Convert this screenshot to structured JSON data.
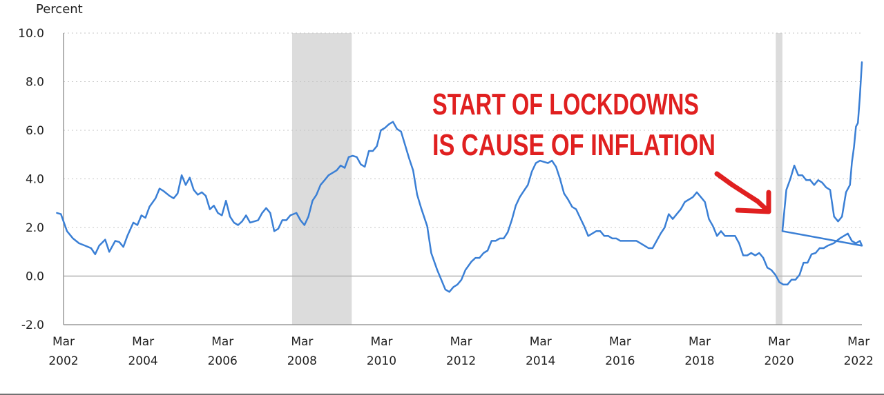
{
  "chart_data": {
    "type": "line",
    "title": "",
    "ylabel": "Percent",
    "xlabel": "",
    "ylim": [
      -2.0,
      10.0
    ],
    "yticks": [
      "-2.0",
      "0.0",
      "2.0",
      "4.0",
      "6.0",
      "8.0",
      "10.0"
    ],
    "ytick_values": [
      -2,
      0,
      2,
      4,
      6,
      8,
      10
    ],
    "xlim": [
      2002.167,
      2022.25
    ],
    "xticks": [
      {
        "value": 2002.167,
        "month": "Mar",
        "year": "2002"
      },
      {
        "value": 2004.167,
        "month": "Mar",
        "year": "2004"
      },
      {
        "value": 2006.167,
        "month": "Mar",
        "year": "2006"
      },
      {
        "value": 2008.167,
        "month": "Mar",
        "year": "2008"
      },
      {
        "value": 2010.167,
        "month": "Mar",
        "year": "2010"
      },
      {
        "value": 2012.167,
        "month": "Mar",
        "year": "2012"
      },
      {
        "value": 2014.167,
        "month": "Mar",
        "year": "2014"
      },
      {
        "value": 2016.167,
        "month": "Mar",
        "year": "2016"
      },
      {
        "value": 2018.167,
        "month": "Mar",
        "year": "2018"
      },
      {
        "value": 2020.167,
        "month": "Mar",
        "year": "2020"
      },
      {
        "value": 2022.167,
        "month": "Mar",
        "year": "2022"
      }
    ],
    "recessions": [
      [
        2007.917,
        2009.417
      ],
      [
        2020.083,
        2020.25
      ]
    ],
    "series": [
      {
        "name": "Percent",
        "color": "#3a7fd5",
        "points": [
          [
            2002.0,
            2.6
          ],
          [
            2002.1,
            2.55
          ],
          [
            2002.25,
            1.85
          ],
          [
            2002.4,
            1.55
          ],
          [
            2002.55,
            1.35
          ],
          [
            2002.7,
            1.25
          ],
          [
            2002.85,
            1.15
          ],
          [
            2002.95,
            0.9
          ],
          [
            2003.05,
            1.25
          ],
          [
            2003.2,
            1.5
          ],
          [
            2003.3,
            1.0
          ],
          [
            2003.45,
            1.45
          ],
          [
            2003.55,
            1.4
          ],
          [
            2003.65,
            1.2
          ],
          [
            2003.75,
            1.65
          ],
          [
            2003.9,
            2.2
          ],
          [
            2004.0,
            2.1
          ],
          [
            2004.1,
            2.5
          ],
          [
            2004.2,
            2.4
          ],
          [
            2004.3,
            2.85
          ],
          [
            2004.45,
            3.2
          ],
          [
            2004.55,
            3.6
          ],
          [
            2004.65,
            3.5
          ],
          [
            2004.8,
            3.3
          ],
          [
            2004.9,
            3.2
          ],
          [
            2005.0,
            3.4
          ],
          [
            2005.1,
            4.15
          ],
          [
            2005.2,
            3.75
          ],
          [
            2005.3,
            4.05
          ],
          [
            2005.4,
            3.55
          ],
          [
            2005.5,
            3.35
          ],
          [
            2005.6,
            3.45
          ],
          [
            2005.7,
            3.3
          ],
          [
            2005.8,
            2.75
          ],
          [
            2005.9,
            2.9
          ],
          [
            2006.0,
            2.6
          ],
          [
            2006.1,
            2.5
          ],
          [
            2006.2,
            3.1
          ],
          [
            2006.3,
            2.45
          ],
          [
            2006.4,
            2.2
          ],
          [
            2006.5,
            2.1
          ],
          [
            2006.6,
            2.25
          ],
          [
            2006.7,
            2.5
          ],
          [
            2006.8,
            2.2
          ],
          [
            2006.9,
            2.25
          ],
          [
            2007.0,
            2.3
          ],
          [
            2007.1,
            2.6
          ],
          [
            2007.2,
            2.8
          ],
          [
            2007.3,
            2.6
          ],
          [
            2007.4,
            1.85
          ],
          [
            2007.5,
            1.95
          ],
          [
            2007.6,
            2.3
          ],
          [
            2007.7,
            2.3
          ],
          [
            2007.8,
            2.5
          ],
          [
            2007.95,
            2.6
          ],
          [
            2008.05,
            2.3
          ],
          [
            2008.15,
            2.1
          ],
          [
            2008.25,
            2.45
          ],
          [
            2008.35,
            3.1
          ],
          [
            2008.45,
            3.35
          ],
          [
            2008.55,
            3.75
          ],
          [
            2008.65,
            3.95
          ],
          [
            2008.75,
            4.15
          ],
          [
            2008.85,
            4.25
          ],
          [
            2008.95,
            4.35
          ],
          [
            2009.05,
            4.55
          ],
          [
            2009.15,
            4.45
          ],
          [
            2009.25,
            4.9
          ],
          [
            2009.35,
            4.95
          ],
          [
            2009.45,
            4.9
          ],
          [
            2009.55,
            4.6
          ],
          [
            2009.65,
            4.5
          ],
          [
            2009.75,
            5.15
          ],
          [
            2009.85,
            5.15
          ],
          [
            2009.95,
            5.35
          ],
          [
            2010.05,
            6.0
          ],
          [
            2010.15,
            6.1
          ],
          [
            2010.25,
            6.25
          ],
          [
            2010.35,
            6.35
          ],
          [
            2010.45,
            6.05
          ],
          [
            2010.55,
            5.95
          ],
          [
            2010.65,
            5.4
          ],
          [
            2010.75,
            4.85
          ],
          [
            2010.85,
            4.35
          ],
          [
            2010.95,
            3.35
          ],
          [
            2011.05,
            2.8
          ],
          [
            2011.2,
            2.05
          ],
          [
            2011.3,
            0.95
          ],
          [
            2011.45,
            0.25
          ],
          [
            2011.55,
            -0.15
          ],
          [
            2011.65,
            -0.55
          ],
          [
            2011.75,
            -0.65
          ],
          [
            2011.85,
            -0.45
          ],
          [
            2011.95,
            -0.35
          ],
          [
            2012.05,
            -0.15
          ],
          [
            2012.15,
            0.25
          ],
          [
            2012.3,
            0.6
          ],
          [
            2012.4,
            0.75
          ],
          [
            2012.5,
            0.75
          ],
          [
            2012.6,
            0.95
          ],
          [
            2012.7,
            1.05
          ],
          [
            2012.8,
            1.45
          ],
          [
            2012.9,
            1.45
          ],
          [
            2013.0,
            1.55
          ],
          [
            2013.1,
            1.55
          ],
          [
            2013.2,
            1.8
          ],
          [
            2013.3,
            2.3
          ],
          [
            2013.4,
            2.9
          ],
          [
            2013.5,
            3.25
          ],
          [
            2013.6,
            3.5
          ],
          [
            2013.7,
            3.75
          ],
          [
            2013.8,
            4.3
          ],
          [
            2013.9,
            4.65
          ],
          [
            2014.0,
            4.75
          ],
          [
            2014.1,
            4.7
          ],
          [
            2014.2,
            4.65
          ],
          [
            2014.3,
            4.75
          ],
          [
            2014.4,
            4.5
          ],
          [
            2014.5,
            4.0
          ],
          [
            2014.6,
            3.4
          ],
          [
            2014.7,
            3.15
          ],
          [
            2014.8,
            2.85
          ],
          [
            2014.9,
            2.75
          ],
          [
            2015.0,
            2.4
          ],
          [
            2015.1,
            2.05
          ],
          [
            2015.2,
            1.65
          ],
          [
            2015.3,
            1.75
          ],
          [
            2015.4,
            1.85
          ],
          [
            2015.5,
            1.85
          ],
          [
            2015.6,
            1.65
          ],
          [
            2015.7,
            1.65
          ],
          [
            2015.8,
            1.55
          ],
          [
            2015.9,
            1.55
          ],
          [
            2016.0,
            1.45
          ],
          [
            2016.2,
            1.45
          ],
          [
            2016.4,
            1.45
          ],
          [
            2016.5,
            1.35
          ],
          [
            2016.6,
            1.25
          ],
          [
            2016.7,
            1.15
          ],
          [
            2016.8,
            1.15
          ],
          [
            2016.9,
            1.45
          ],
          [
            2017.0,
            1.75
          ],
          [
            2017.1,
            2.0
          ],
          [
            2017.2,
            2.55
          ],
          [
            2017.3,
            2.35
          ],
          [
            2017.4,
            2.55
          ],
          [
            2017.5,
            2.75
          ],
          [
            2017.6,
            3.05
          ],
          [
            2017.7,
            3.15
          ],
          [
            2017.8,
            3.25
          ],
          [
            2017.9,
            3.45
          ],
          [
            2018.0,
            3.25
          ],
          [
            2018.1,
            3.05
          ],
          [
            2018.2,
            2.35
          ],
          [
            2018.3,
            2.05
          ],
          [
            2018.4,
            1.65
          ],
          [
            2018.5,
            1.85
          ],
          [
            2018.6,
            1.65
          ],
          [
            2018.7,
            1.65
          ],
          [
            2018.85,
            1.65
          ],
          [
            2018.95,
            1.35
          ],
          [
            2019.05,
            0.85
          ],
          [
            2019.15,
            0.85
          ],
          [
            2019.25,
            0.95
          ],
          [
            2019.35,
            0.85
          ],
          [
            2019.45,
            0.95
          ],
          [
            2019.55,
            0.75
          ],
          [
            2019.65,
            0.35
          ],
          [
            2019.75,
            0.25
          ],
          [
            2019.85,
            0.05
          ],
          [
            2019.95,
            -0.25
          ],
          [
            2020.05,
            -0.35
          ],
          [
            2020.15,
            -0.35
          ],
          [
            2020.25,
            -0.15
          ],
          [
            2020.35,
            -0.15
          ],
          [
            2020.45,
            0.05
          ],
          [
            2020.55,
            0.55
          ],
          [
            2020.65,
            0.55
          ],
          [
            2020.75,
            0.9
          ],
          [
            2020.85,
            0.95
          ],
          [
            2020.95,
            1.15
          ],
          [
            2021.05,
            1.15
          ],
          [
            2021.15,
            1.25
          ],
          [
            2021.3,
            1.35
          ],
          [
            2021.45,
            1.55
          ],
          [
            2021.55,
            1.65
          ],
          [
            2021.65,
            1.75
          ],
          [
            2021.75,
            1.45
          ],
          [
            2021.85,
            1.35
          ],
          [
            2021.95,
            1.45
          ],
          [
            2022.0,
            1.25
          ]
        ]
      }
    ],
    "annotation": {
      "line1": "START OF LOCKDOWNS",
      "line2": "IS CAUSE OF INFLATION"
    }
  }
}
